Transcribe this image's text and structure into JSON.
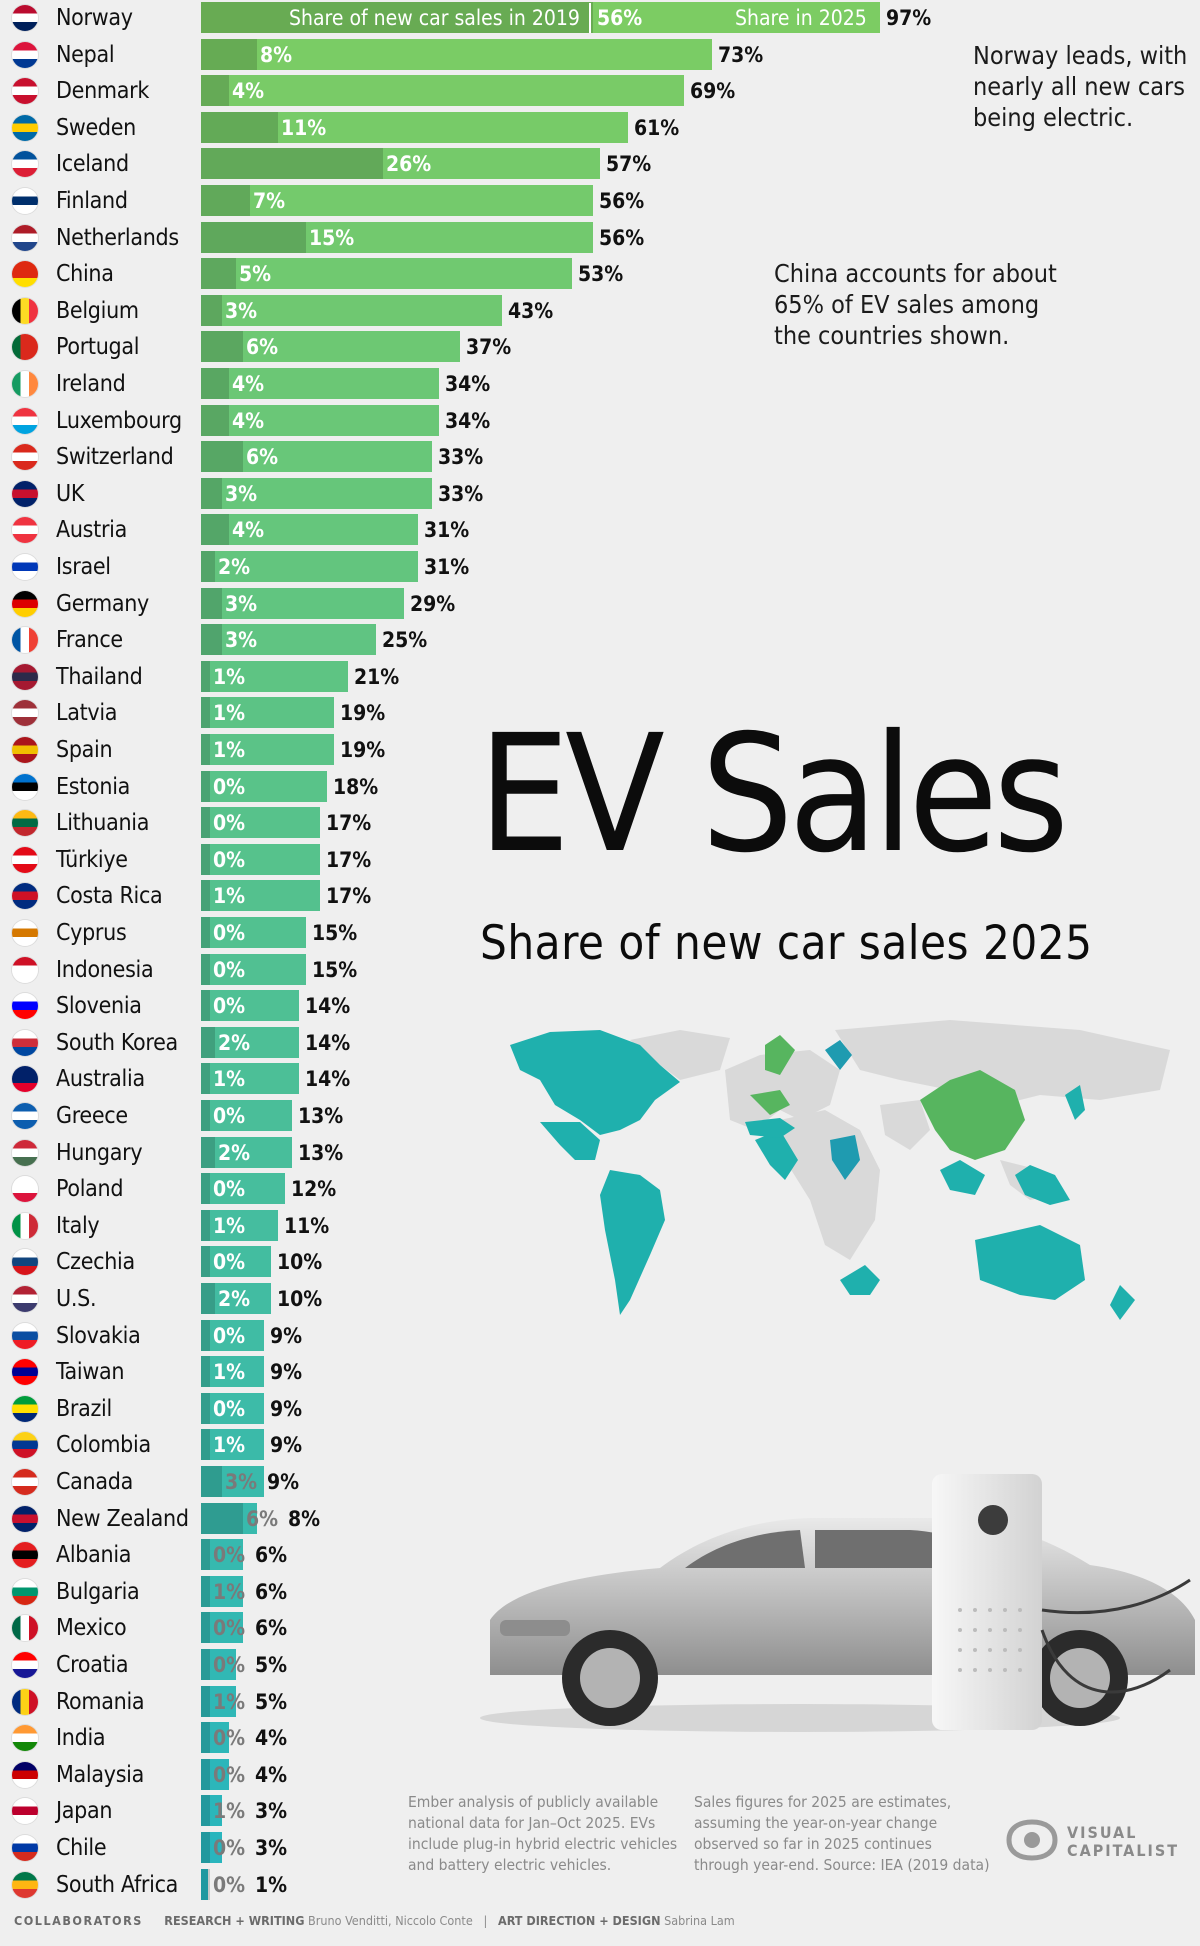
{
  "chart_data": {
    "type": "bar",
    "title": "EV Sales",
    "subtitle": "Share of new car sales 2025",
    "series_labels": {
      "s2019": "Share of new car sales in 2019",
      "s2025": "Share in 2025"
    },
    "categories": [
      "Norway",
      "Nepal",
      "Denmark",
      "Sweden",
      "Iceland",
      "Finland",
      "Netherlands",
      "China",
      "Belgium",
      "Portugal",
      "Ireland",
      "Luxembourg",
      "Switzerland",
      "UK",
      "Austria",
      "Israel",
      "Germany",
      "France",
      "Thailand",
      "Latvia",
      "Spain",
      "Estonia",
      "Lithuania",
      "Türkiye",
      "Costa Rica",
      "Cyprus",
      "Indonesia",
      "Slovenia",
      "South Korea",
      "Australia",
      "Greece",
      "Hungary",
      "Poland",
      "Italy",
      "Czechia",
      "U.S.",
      "Slovakia",
      "Taiwan",
      "Brazil",
      "Colombia",
      "Canada",
      "New Zealand",
      "Albania",
      "Bulgaria",
      "Mexico",
      "Croatia",
      "Romania",
      "India",
      "Malaysia",
      "Japan",
      "Chile",
      "South Africa"
    ],
    "series": [
      {
        "name": "Share of new car sales in 2019",
        "values": [
          56,
          8,
          4,
          11,
          26,
          7,
          15,
          5,
          3,
          6,
          4,
          4,
          6,
          3,
          4,
          2,
          3,
          3,
          1,
          1,
          1,
          0,
          0,
          0,
          1,
          0,
          0,
          0,
          2,
          1,
          0,
          2,
          0,
          1,
          0,
          2,
          0,
          1,
          0,
          1,
          3,
          6,
          0,
          1,
          0,
          0,
          1,
          0,
          0,
          1,
          0,
          0
        ]
      },
      {
        "name": "Share in 2025",
        "values": [
          97,
          73,
          69,
          61,
          57,
          56,
          56,
          53,
          43,
          37,
          34,
          34,
          33,
          33,
          31,
          31,
          29,
          25,
          21,
          19,
          19,
          18,
          17,
          17,
          17,
          15,
          15,
          14,
          14,
          14,
          13,
          13,
          12,
          11,
          10,
          10,
          9,
          9,
          9,
          9,
          9,
          8,
          6,
          6,
          6,
          5,
          5,
          4,
          4,
          3,
          3,
          1
        ]
      }
    ],
    "unit": "%",
    "xlim": [
      0,
      100
    ]
  },
  "annotations": {
    "norway": [
      "Norway leads, with",
      "nearly all new cars",
      "being electric."
    ],
    "china": [
      "China accounts for about",
      "65% of EV sales among",
      "the countries shown."
    ]
  },
  "footnotes": {
    "left": [
      "Ember analysis of publicly available",
      "national data for Jan–Oct 2025. EVs",
      "include plug-in hybrid electric vehicles",
      "and battery electric vehicles."
    ],
    "right": [
      "Sales figures for 2025 are estimates,",
      "assuming the year-on-year change",
      "observed so far in 2025 continues",
      "through year-end. Source: IEA (2019 data)"
    ]
  },
  "credits": {
    "collaborators": "COLLABORATORS",
    "research_label": "RESEARCH + WRITING",
    "research_names": "Bruno Venditti, Niccolo Conte",
    "sep": "|",
    "design_label": "ART DIRECTION + DESIGN",
    "design_names": "Sabrina Lam"
  },
  "logo": {
    "line1": "VISUAL",
    "line2": "CAPITALIST"
  },
  "colors": {
    "bar_top": "#7ccc63",
    "bar_bottom": "#27b5bf",
    "bar_low": "#1f9bb0",
    "text": "#111111",
    "map_land": "#d8d8d8"
  }
}
